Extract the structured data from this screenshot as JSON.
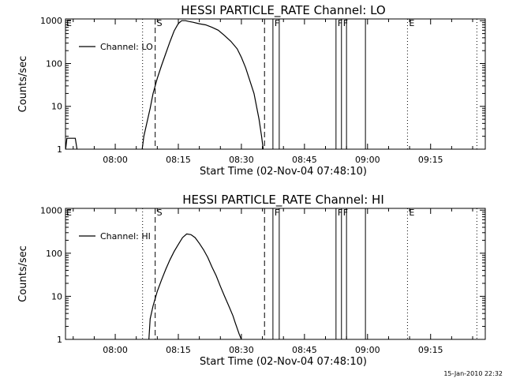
{
  "chart_data": [
    {
      "type": "line",
      "title": "HESSI PARTICLE_RATE Channel: LO",
      "xlabel": "Start Time (02-Nov-04 07:48:10)",
      "ylabel": "Counts/sec",
      "y_scale": "log",
      "ylim": [
        1,
        1100
      ],
      "xlim": [
        "07:48:10",
        "09:28:00"
      ],
      "grid": false,
      "legend": {
        "placement": "top-left",
        "entries": [
          "Channel: LO"
        ]
      },
      "x_tick_labels": [
        "08:00",
        "08:15",
        "08:30",
        "08:45",
        "09:00",
        "09:15"
      ],
      "x_ticks_min": [
        480,
        495,
        510,
        525,
        540,
        555
      ],
      "y_tick_labels": [
        "1",
        "10",
        "100",
        "1000"
      ],
      "y_ticks": [
        1,
        10,
        100,
        1000
      ],
      "series": [
        {
          "name": "Channel: LO",
          "segments": [
            {
              "x_min": [
                468.2,
                468.5,
                470.5,
                470.9
              ],
              "y": [
                1,
                1.8,
                1.8,
                1
              ]
            },
            {
              "x_min": [
                486.4,
                486.8,
                487.5,
                488.3,
                489.0,
                490.0,
                491.0,
                492.0,
                493.0,
                494.0,
                495.0,
                495.8,
                496.7,
                497.5,
                498.5,
                500.0,
                501.5,
                503.0,
                504.5,
                506.0,
                507.5,
                509.0,
                510.0,
                511.0,
                512.0,
                513.0,
                513.6,
                514.2,
                514.8,
                515.2
              ],
              "y": [
                1,
                2,
                4,
                9,
                20,
                45,
                90,
                170,
                320,
                580,
                860,
                1000,
                1000,
                960,
                920,
                850,
                800,
                700,
                600,
                450,
                330,
                220,
                140,
                80,
                40,
                20,
                10,
                5,
                2,
                1
              ]
            }
          ]
        }
      ],
      "annotations": [
        {
          "label": "S",
          "x_min": 489.5,
          "line": "dashed"
        },
        {
          "label": "",
          "x_min": 515.5,
          "line": "dashed"
        },
        {
          "label": "",
          "x_min": 486.5,
          "line": "dotted"
        },
        {
          "label": "E",
          "x_min": 549.5,
          "line": "dotted"
        },
        {
          "label": "",
          "x_min": 566.0,
          "line": "dotted"
        },
        {
          "label": "F",
          "x_min": 517.5,
          "line": "solid"
        },
        {
          "label": "",
          "x_min": 519.0,
          "line": "solid"
        },
        {
          "label": "F",
          "x_min": 532.5,
          "line": "solid"
        },
        {
          "label": "F",
          "x_min": 533.8,
          "line": "solid"
        },
        {
          "label": "",
          "x_min": 535.0,
          "line": "solid"
        },
        {
          "label": "",
          "x_min": 539.5,
          "line": "solid"
        }
      ]
    },
    {
      "type": "line",
      "title": "HESSI PARTICLE_RATE Channel: HI",
      "xlabel": "Start Time (02-Nov-04 07:48:10)",
      "ylabel": "Counts/sec",
      "y_scale": "log",
      "ylim": [
        1,
        1100
      ],
      "xlim": [
        "07:48:10",
        "09:28:00"
      ],
      "grid": false,
      "legend": {
        "placement": "top-left",
        "entries": [
          "Channel: HI"
        ]
      },
      "x_tick_labels": [
        "08:00",
        "08:15",
        "08:30",
        "08:45",
        "09:00",
        "09:15"
      ],
      "x_ticks_min": [
        480,
        495,
        510,
        525,
        540,
        555
      ],
      "y_tick_labels": [
        "1",
        "10",
        "100",
        "1000"
      ],
      "y_ticks": [
        1,
        10,
        100,
        1000
      ],
      "series": [
        {
          "name": "Channel: HI",
          "segments": [
            {
              "x_min": [
                488.0,
                488.3,
                489.0,
                490.0,
                491.0,
                492.0,
                493.0,
                494.0,
                495.0,
                496.0,
                497.0,
                498.0,
                499.0,
                500.0,
                501.0,
                502.0,
                503.0,
                504.0,
                505.0,
                506.0,
                507.0,
                508.0,
                508.5,
                509.0,
                509.5,
                510.0
              ],
              "y": [
                1,
                3,
                6,
                13,
                24,
                42,
                70,
                110,
                160,
                230,
                280,
                270,
                230,
                170,
                120,
                80,
                48,
                30,
                17,
                10,
                6,
                3.5,
                2.5,
                1.8,
                1.3,
                1
              ]
            }
          ]
        }
      ],
      "annotations": [
        {
          "label": "S",
          "x_min": 489.5,
          "line": "dashed"
        },
        {
          "label": "",
          "x_min": 515.5,
          "line": "dashed"
        },
        {
          "label": "",
          "x_min": 486.5,
          "line": "dotted"
        },
        {
          "label": "E",
          "x_min": 549.5,
          "line": "dotted"
        },
        {
          "label": "",
          "x_min": 566.0,
          "line": "dotted"
        },
        {
          "label": "F",
          "x_min": 517.5,
          "line": "solid"
        },
        {
          "label": "",
          "x_min": 519.0,
          "line": "solid"
        },
        {
          "label": "F",
          "x_min": 532.5,
          "line": "solid"
        },
        {
          "label": "F",
          "x_min": 533.8,
          "line": "solid"
        },
        {
          "label": "",
          "x_min": 535.0,
          "line": "solid"
        },
        {
          "label": "",
          "x_min": 539.5,
          "line": "solid"
        }
      ]
    }
  ],
  "footer": {
    "timestamp": "15-Jan-2010 22:32"
  }
}
